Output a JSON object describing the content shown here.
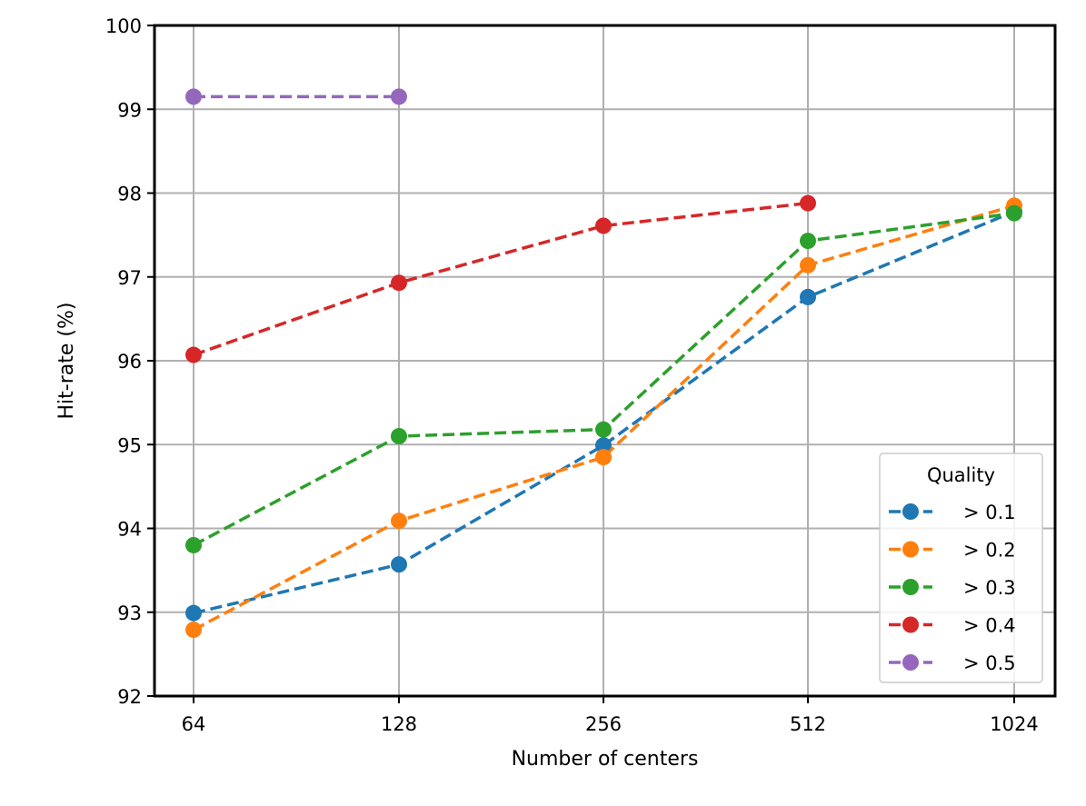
{
  "chart_data": {
    "type": "line",
    "title": "",
    "xlabel": "Number of centers",
    "ylabel": "Hit-rate (%)",
    "x_scale": "log2",
    "categories": [
      "64",
      "128",
      "256",
      "512",
      "1024"
    ],
    "x": [
      64,
      128,
      256,
      512,
      1024
    ],
    "xticks": [
      "64",
      "128",
      "256",
      "512",
      "1024"
    ],
    "yticks": [
      "92",
      "93",
      "94",
      "95",
      "96",
      "97",
      "98",
      "99",
      "100"
    ],
    "ylim": [
      92,
      100
    ],
    "grid": true,
    "line_style": "dashed",
    "marker": "circle",
    "legend": {
      "title": "Quality",
      "placement": "lower-right"
    },
    "series": [
      {
        "name": "> 0.1",
        "color": "#1f77b4",
        "x": [
          64,
          128,
          256,
          512,
          1024
        ],
        "values": [
          92.99,
          93.57,
          94.99,
          96.76,
          97.78
        ]
      },
      {
        "name": "> 0.2",
        "color": "#ff7f0e",
        "x": [
          64,
          128,
          256,
          512,
          1024
        ],
        "values": [
          92.79,
          94.09,
          94.85,
          97.14,
          97.85
        ]
      },
      {
        "name": "> 0.3",
        "color": "#2ca02c",
        "x": [
          64,
          128,
          256,
          512,
          1024
        ],
        "values": [
          93.8,
          95.1,
          95.18,
          97.43,
          97.76
        ]
      },
      {
        "name": "> 0.4",
        "color": "#d62728",
        "x": [
          64,
          128,
          256,
          512
        ],
        "values": [
          96.07,
          96.93,
          97.61,
          97.88
        ]
      },
      {
        "name": "> 0.5",
        "color": "#9467bd",
        "x": [
          64,
          128
        ],
        "values": [
          99.15,
          99.15
        ]
      }
    ]
  }
}
